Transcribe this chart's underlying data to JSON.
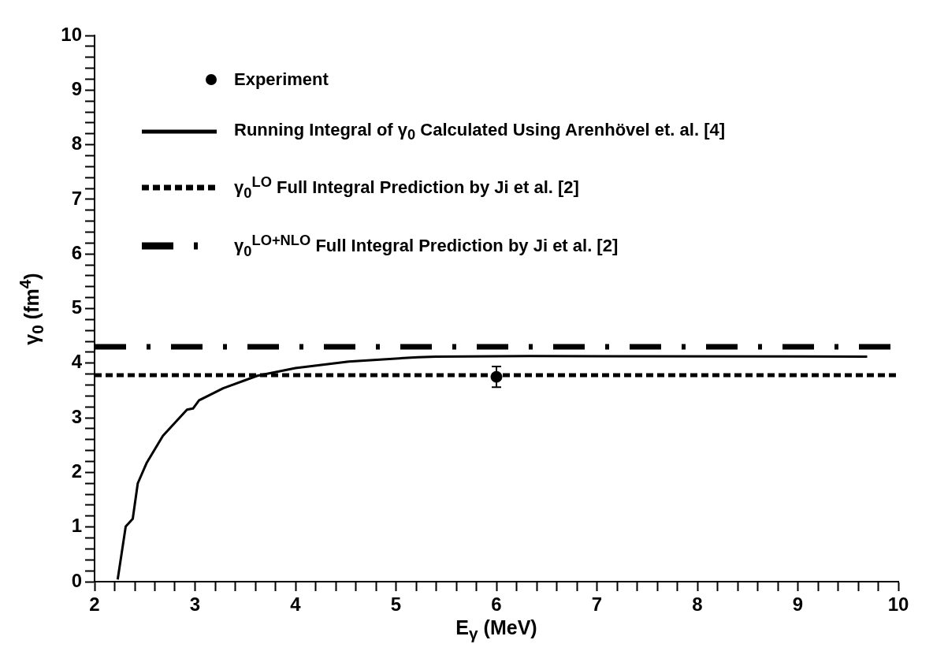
{
  "chart_data": {
    "type": "line",
    "xlabel": "E$_{γ}$ (MeV)",
    "ylabel": "γ$_{0}$ (fm$^{4}$)",
    "xlim": [
      2,
      10
    ],
    "ylim": [
      0,
      10
    ],
    "xticks": [
      2,
      {
        "value": 2.2,
        "label": null
      },
      {
        "value": 2.4,
        "label": null
      },
      {
        "value": 2.6,
        "label": null
      },
      {
        "value": 2.8,
        "label": null
      },
      3,
      {
        "value": 3.2,
        "label": null
      },
      {
        "value": 3.4,
        "label": null
      },
      {
        "value": 3.6,
        "label": null
      },
      {
        "value": 3.8,
        "label": null
      },
      4,
      {
        "value": 4.2,
        "label": null
      },
      {
        "value": 4.4,
        "label": null
      },
      {
        "value": 4.6,
        "label": null
      },
      {
        "value": 4.8,
        "label": null
      },
      5,
      {
        "value": 5.2,
        "label": null
      },
      {
        "value": 5.4,
        "label": null
      },
      {
        "value": 5.6,
        "label": null
      },
      {
        "value": 5.8,
        "label": null
      },
      6,
      {
        "value": 6.2,
        "label": null
      },
      {
        "value": 6.4,
        "label": null
      },
      {
        "value": 6.6,
        "label": null
      },
      {
        "value": 6.8,
        "label": null
      },
      7,
      {
        "value": 7.2,
        "label": null
      },
      {
        "value": 7.4,
        "label": null
      },
      {
        "value": 7.6,
        "label": null
      },
      {
        "value": 7.8,
        "label": null
      },
      8,
      {
        "value": 8.2,
        "label": null
      },
      {
        "value": 8.4,
        "label": null
      },
      {
        "value": 8.6,
        "label": null
      },
      {
        "value": 8.8,
        "label": null
      },
      9,
      {
        "value": 9.2,
        "label": null
      },
      {
        "value": 9.4,
        "label": null
      },
      {
        "value": 9.6,
        "label": null
      },
      {
        "value": 9.8,
        "label": null
      },
      10
    ],
    "yticks": [
      0,
      {
        "value": 0.2,
        "label": null
      },
      {
        "value": 0.4,
        "label": null
      },
      {
        "value": 0.6,
        "label": null
      },
      {
        "value": 0.8,
        "label": null
      },
      1,
      {
        "value": 1.2,
        "label": null
      },
      {
        "value": 1.4,
        "label": null
      },
      {
        "value": 1.6,
        "label": null
      },
      {
        "value": 1.8,
        "label": null
      },
      2,
      {
        "value": 2.2,
        "label": null
      },
      {
        "value": 2.4,
        "label": null
      },
      {
        "value": 2.6,
        "label": null
      },
      {
        "value": 2.8,
        "label": null
      },
      3,
      {
        "value": 3.2,
        "label": null
      },
      {
        "value": 3.4,
        "label": null
      },
      {
        "value": 3.6,
        "label": null
      },
      {
        "value": 3.8,
        "label": null
      },
      4,
      {
        "value": 4.2,
        "label": null
      },
      {
        "value": 4.4,
        "label": null
      },
      {
        "value": 4.6,
        "label": null
      },
      {
        "value": 4.8,
        "label": null
      },
      5,
      {
        "value": 5.2,
        "label": null
      },
      {
        "value": 5.4,
        "label": null
      },
      {
        "value": 5.6,
        "label": null
      },
      {
        "value": 5.8,
        "label": null
      },
      6,
      {
        "value": 6.2,
        "label": null
      },
      {
        "value": 6.4,
        "label": null
      },
      {
        "value": 6.6,
        "label": null
      },
      {
        "value": 6.8,
        "label": null
      },
      7,
      {
        "value": 7.2,
        "label": null
      },
      {
        "value": 7.4,
        "label": null
      },
      {
        "value": 7.6,
        "label": null
      },
      {
        "value": 7.8,
        "label": null
      },
      8,
      {
        "value": 8.2,
        "label": null
      },
      {
        "value": 8.4,
        "label": null
      },
      {
        "value": 8.6,
        "label": null
      },
      {
        "value": 8.8,
        "label": null
      },
      9,
      {
        "value": 9.2,
        "label": null
      },
      {
        "value": 9.4,
        "label": null
      },
      {
        "value": 9.6,
        "label": null
      },
      {
        "value": 9.8,
        "label": null
      },
      10
    ],
    "legend": "top left",
    "series": [
      {
        "name": "Experiment",
        "type": "scatter",
        "marker": "circle",
        "color": "#000000",
        "x": [
          6
        ],
        "values": [
          3.75
        ],
        "errors": [
          0.19
        ]
      },
      {
        "name": "Running Integral of γ$_{0}$ Calculated Using Arenhövel et. al. [4]",
        "line_style": "solid",
        "color": "#000000",
        "x": [
          2.23,
          2.31,
          2.38,
          2.43,
          2.52,
          2.68,
          2.92,
          2.98,
          3.04,
          3.28,
          3.62,
          4.0,
          4.53,
          5.22,
          5.4,
          6.33,
          9.69
        ],
        "values": [
          0.04,
          1.01,
          1.15,
          1.8,
          2.18,
          2.67,
          3.15,
          3.17,
          3.32,
          3.54,
          3.77,
          3.91,
          4.03,
          4.11,
          4.12,
          4.13,
          4.12
        ]
      },
      {
        "name": "γ$_{0}$$^{LO}$ Full Integral Prediction by Ji et al. [2]",
        "line_style": "dotted",
        "color": "#000000",
        "x": [
          2,
          10
        ],
        "values": [
          3.78,
          3.78
        ]
      },
      {
        "name": "γ$_{0}$$^{LO+NLO}$ Full Integral Prediction by Ji et al. [2]",
        "line_style": "dashed",
        "color": "#000000",
        "x": [
          2,
          10
        ],
        "values": [
          4.3,
          4.3
        ]
      }
    ]
  }
}
